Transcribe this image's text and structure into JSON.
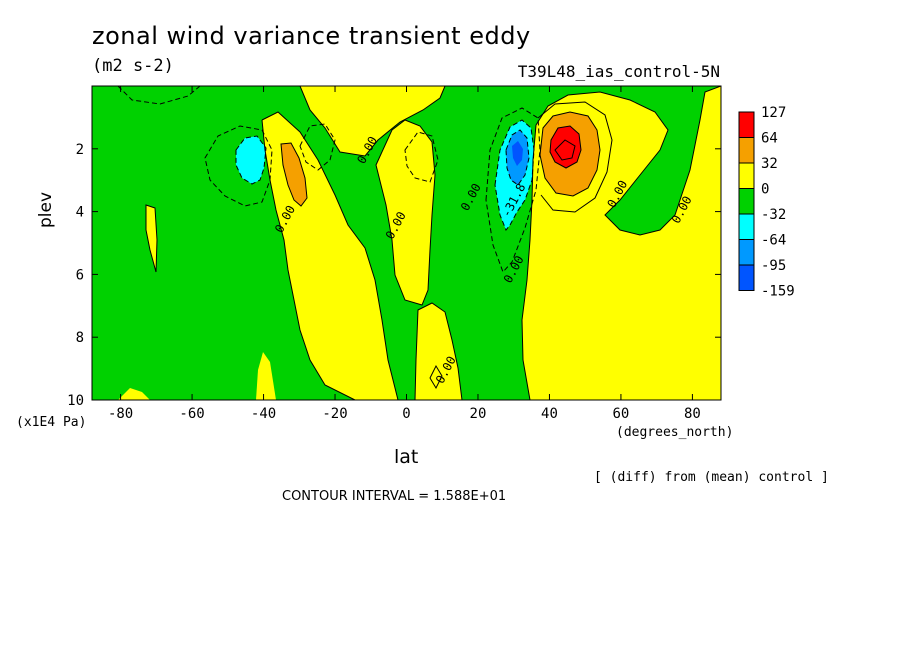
{
  "title": "zonal wind variance transient eddy",
  "units": "(m2 s-2)",
  "run_label": "T39L48_ias_control-5N",
  "contour_interval": "CONTOUR INTERVAL = 1.588E+01",
  "diff_note": "[ (diff) from (mean) control ]",
  "colors": {
    "above_127": "#ff0000",
    "c64_127": "#ff0000",
    "c32_64": "#f5a000",
    "c0_32": "#ffff00",
    "cm32_0": "#00d100",
    "cm64_m32": "#00ffff",
    "cm95_m64": "#0099ff",
    "cm159_m95": "#0055ff"
  },
  "chart_data": {
    "type": "heatmap",
    "title": "zonal wind variance transient eddy",
    "units": "(m2 s-2)",
    "xlabel": "lat",
    "xunits": "(degrees_north)",
    "ylabel": "plev",
    "yunits": "(x1E4 Pa)",
    "xlim": [
      -88,
      88
    ],
    "ylim": [
      10,
      0
    ],
    "x_ticks": [
      -80,
      -60,
      -40,
      -20,
      0,
      20,
      40,
      60,
      80
    ],
    "x_tick_labels": [
      "-80",
      "-60",
      "-40",
      "-20",
      "0",
      "20",
      "40",
      "60",
      "80"
    ],
    "y_ticks": [
      2,
      4,
      6,
      8,
      10
    ],
    "y_tick_labels": [
      "2",
      "4",
      "6",
      "8",
      "10"
    ],
    "colorbar": {
      "levels": [
        "127",
        "64",
        "32",
        "0",
        "-32",
        "-64",
        "-95",
        "-159"
      ],
      "colors": [
        "#ff0000",
        "#f5a000",
        "#ffff00",
        "#00d100",
        "#00ffff",
        "#0099ff",
        "#0055ff"
      ]
    },
    "contour_labels": [
      {
        "text": "0.00",
        "lat": -10,
        "plev": 2.1
      },
      {
        "text": "0.00",
        "lat": -33,
        "plev": 4.3
      },
      {
        "text": "0.00",
        "lat": -2,
        "plev": 4.5
      },
      {
        "text": "0.00",
        "lat": 19,
        "plev": 3.6
      },
      {
        "text": "0.00",
        "lat": 31,
        "plev": 5.9
      },
      {
        "text": "-31.8",
        "lat": 31,
        "plev": 3.7
      },
      {
        "text": "0.00",
        "lat": 60,
        "plev": 3.5
      },
      {
        "text": "0.00",
        "lat": 78,
        "plev": 4.0
      },
      {
        "text": "0.00",
        "lat": 12,
        "plev": 9.1
      }
    ],
    "features": [
      {
        "sign": "positive",
        "peak_range": "64 to 127",
        "lat": 44,
        "plev": 2.0
      },
      {
        "sign": "positive",
        "peak_range": "32 to 64",
        "lat": -32,
        "plev": 2.8
      },
      {
        "sign": "negative",
        "peak_range": "-64 to -95",
        "lat": 31,
        "plev": 2.5
      },
      {
        "sign": "negative",
        "peak_range": "-32 to -64",
        "lat": -43,
        "plev": 2.5
      }
    ]
  }
}
